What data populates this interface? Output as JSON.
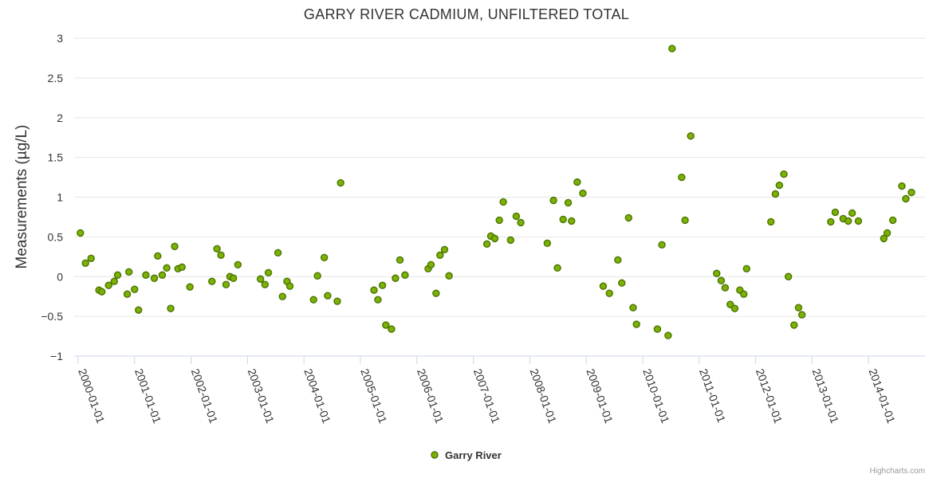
{
  "credits": "Highcharts.com",
  "colors": {
    "marker_fill": "#7cb105",
    "marker_stroke": "#4a7400",
    "grid": "#e6e6e6",
    "axis": "#ccd6eb",
    "text": "#333333"
  },
  "chart_data": {
    "type": "scatter",
    "title": "GARRY RIVER CADMIUM, UNFILTERED TOTAL",
    "xlabel": "",
    "ylabel": "Measurements (µg/L)",
    "ylim": [
      -1,
      3
    ],
    "yticks": [
      -1,
      -0.5,
      0,
      0.5,
      1,
      1.5,
      2,
      2.5,
      3
    ],
    "ytick_labels": [
      "−1",
      "−0.5",
      "0",
      "0.5",
      "1",
      "1.5",
      "2",
      "2.5",
      "3"
    ],
    "xlim": [
      1999.93,
      2015.0
    ],
    "xticks": [
      2000,
      2001,
      2002,
      2003,
      2004,
      2005,
      2006,
      2007,
      2008,
      2009,
      2010,
      2011,
      2012,
      2013,
      2014
    ],
    "xtick_labels": [
      "2000-01-01",
      "2001-01-01",
      "2002-01-01",
      "2003-01-01",
      "2004-01-01",
      "2005-01-01",
      "2006-01-01",
      "2007-01-01",
      "2008-01-01",
      "2009-01-01",
      "2010-01-01",
      "2011-01-01",
      "2012-01-01",
      "2013-01-01",
      "2014-01-01"
    ],
    "grid": true,
    "legend": "bottom-center",
    "series": [
      {
        "name": "Garry River",
        "x": [
          2000.04,
          2000.13,
          2000.23,
          2000.37,
          2000.42,
          2000.54,
          2000.64,
          2000.7,
          2000.87,
          2000.9,
          2001.0,
          2001.07,
          2001.2,
          2001.35,
          2001.41,
          2001.49,
          2001.57,
          2001.64,
          2001.71,
          2001.77,
          2001.84,
          2001.98,
          2002.37,
          2002.46,
          2002.53,
          2002.62,
          2002.69,
          2002.75,
          2002.83,
          2003.23,
          2003.31,
          2003.37,
          2003.54,
          2003.62,
          2003.7,
          2003.75,
          2004.17,
          2004.24,
          2004.36,
          2004.42,
          2004.59,
          2004.65,
          2005.24,
          2005.31,
          2005.39,
          2005.45,
          2005.55,
          2005.62,
          2005.7,
          2005.79,
          2006.2,
          2006.25,
          2006.34,
          2006.41,
          2006.49,
          2006.57,
          2007.24,
          2007.31,
          2007.38,
          2007.46,
          2007.53,
          2007.66,
          2007.76,
          2007.84,
          2008.31,
          2008.42,
          2008.49,
          2008.59,
          2008.68,
          2008.74,
          2008.84,
          2008.94,
          2009.3,
          2009.41,
          2009.56,
          2009.63,
          2009.75,
          2009.83,
          2009.89,
          2010.26,
          2010.34,
          2010.45,
          2010.52,
          2010.69,
          2010.75,
          2010.85,
          2011.31,
          2011.39,
          2011.46,
          2011.55,
          2011.63,
          2011.72,
          2011.79,
          2011.84,
          2012.27,
          2012.35,
          2012.42,
          2012.5,
          2012.58,
          2012.68,
          2012.76,
          2012.82,
          2013.33,
          2013.41,
          2013.55,
          2013.64,
          2013.71,
          2013.82,
          2014.27,
          2014.33,
          2014.43,
          2014.59,
          2014.66,
          2014.76
        ],
        "y": [
          0.55,
          0.17,
          0.23,
          -0.17,
          -0.19,
          -0.11,
          -0.06,
          0.02,
          -0.22,
          0.06,
          -0.16,
          -0.42,
          0.02,
          -0.02,
          0.26,
          0.02,
          0.11,
          -0.4,
          0.38,
          0.1,
          0.12,
          -0.13,
          -0.06,
          0.35,
          0.27,
          -0.1,
          0.0,
          -0.02,
          0.15,
          -0.03,
          -0.1,
          0.05,
          0.3,
          -0.25,
          -0.06,
          -0.12,
          -0.29,
          0.01,
          0.24,
          -0.24,
          -0.31,
          1.18,
          -0.17,
          -0.29,
          -0.11,
          -0.61,
          -0.66,
          -0.02,
          0.21,
          0.02,
          0.1,
          0.15,
          -0.21,
          0.27,
          0.34,
          0.01,
          0.41,
          0.51,
          0.48,
          0.71,
          0.94,
          0.46,
          0.76,
          0.68,
          0.42,
          0.96,
          0.11,
          0.72,
          0.93,
          0.7,
          1.19,
          1.05,
          -0.12,
          -0.21,
          0.21,
          -0.08,
          0.74,
          -0.39,
          -0.6,
          -0.66,
          0.4,
          -0.74,
          2.87,
          1.25,
          0.71,
          1.77,
          0.04,
          -0.05,
          -0.14,
          -0.35,
          -0.4,
          -0.17,
          -0.22,
          0.1,
          0.69,
          1.04,
          1.15,
          1.29,
          0.0,
          -0.61,
          -0.39,
          -0.48,
          0.69,
          0.81,
          0.73,
          0.7,
          0.8,
          0.7,
          0.48,
          0.55,
          0.71,
          1.14,
          0.98,
          1.06
        ]
      }
    ]
  }
}
